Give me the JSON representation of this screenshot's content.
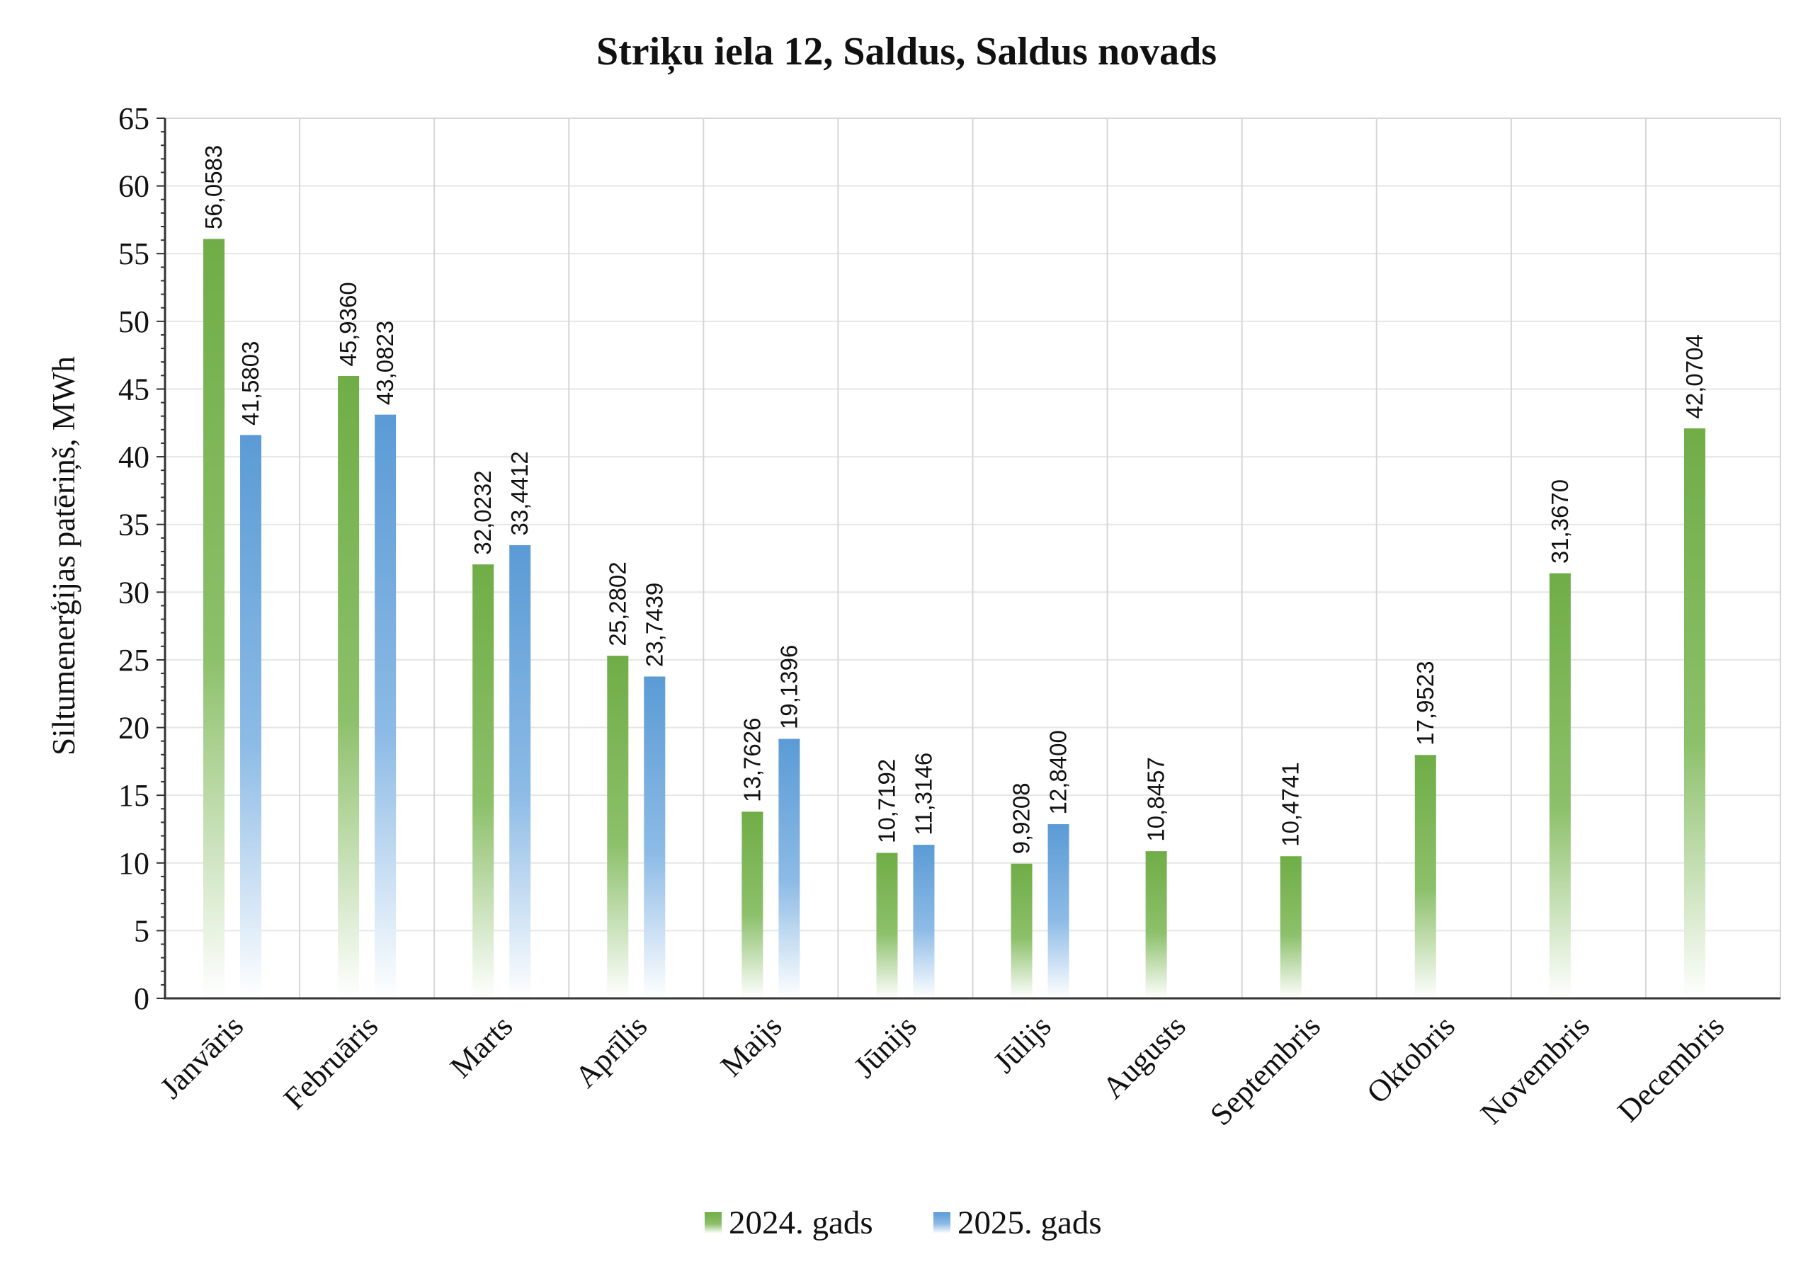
{
  "chart_data": {
    "type": "bar",
    "title": "Striķu iela 12, Saldus, Saldus novads",
    "xlabel": "",
    "ylabel": "Siltumenerģijas patēriņš, MWh",
    "ylim": [
      0,
      65
    ],
    "yticks": [
      0,
      5,
      10,
      15,
      20,
      25,
      30,
      35,
      40,
      45,
      50,
      55,
      60,
      65
    ],
    "grid": true,
    "legend_position": "bottom",
    "categories": [
      "Janvāris",
      "Februāris",
      "Marts",
      "Aprīlis",
      "Maijs",
      "Jūnijs",
      "Jūlijs",
      "Augusts",
      "Septembris",
      "Oktobris",
      "Novembris",
      "Decembris"
    ],
    "series": [
      {
        "name": "2024. gads",
        "color": "#70ad47",
        "values": [
          56.0583,
          45.936,
          32.0232,
          25.2802,
          13.7626,
          10.7192,
          9.9208,
          10.8457,
          10.4741,
          17.9523,
          31.367,
          42.0704
        ],
        "labels": [
          "56,0583",
          "45,9360",
          "32,0232",
          "25,2802",
          "13,7626",
          "10,7192",
          "9,9208",
          "10,8457",
          "10,4741",
          "17,9523",
          "31,3670",
          "42,0704"
        ]
      },
      {
        "name": "2025. gads",
        "color": "#5b9bd5",
        "values": [
          41.5803,
          43.0823,
          33.4412,
          23.7439,
          19.1396,
          11.3146,
          12.84,
          null,
          null,
          null,
          null,
          null
        ],
        "labels": [
          "41,5803",
          "43,0823",
          "33,4412",
          "23,7439",
          "19,1396",
          "11,3146",
          "12,8400",
          null,
          null,
          null,
          null,
          null
        ]
      }
    ]
  }
}
